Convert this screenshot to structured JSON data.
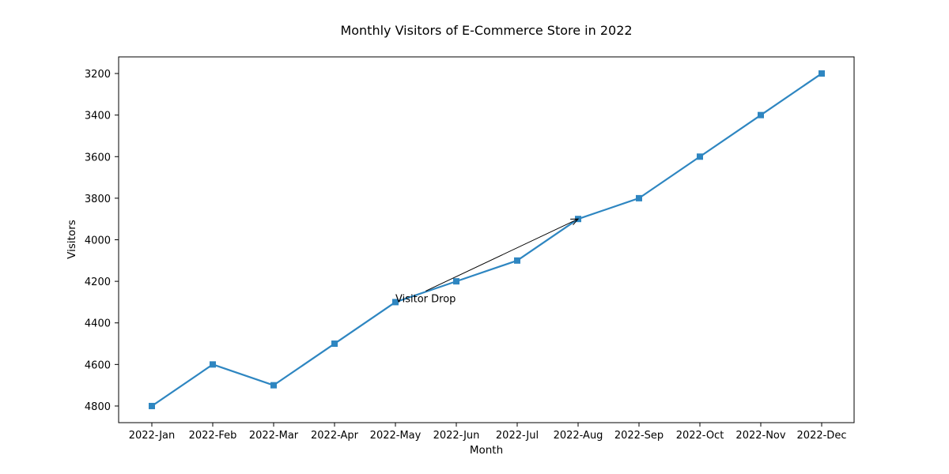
{
  "chart_data": {
    "type": "line",
    "title": "Monthly Visitors of E-Commerce Store in 2022",
    "xlabel": "Month",
    "ylabel": "Visitors",
    "categories": [
      "2022-Jan",
      "2022-Feb",
      "2022-Mar",
      "2022-Apr",
      "2022-May",
      "2022-Jun",
      "2022-Jul",
      "2022-Aug",
      "2022-Sep",
      "2022-Oct",
      "2022-Nov",
      "2022-Dec"
    ],
    "series": [
      {
        "values": [
          4800,
          4600,
          4700,
          4500,
          4300,
          4200,
          4100,
          3900,
          3800,
          3600,
          3400,
          3200
        ],
        "color": "#2e86c1",
        "marker": "square"
      }
    ],
    "yticks": [
      3200,
      3400,
      3600,
      3800,
      4000,
      4200,
      4400,
      4600,
      4800
    ],
    "ylim": [
      4880,
      3120
    ],
    "y_inverted": true,
    "grid": false,
    "annotation": {
      "text": "Visitor Drop",
      "from_category": "2022-May",
      "from_value": 4300,
      "to_category": "2022-Aug",
      "to_value": 3900
    }
  }
}
